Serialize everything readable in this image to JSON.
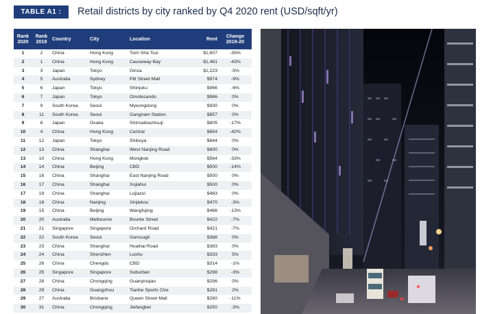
{
  "header": {
    "badge": "TABLE A1 :",
    "title": "Retail districts by city ranked by Q4 2020 rent (USD/sqft/yr)"
  },
  "table": {
    "columns": {
      "rank2020": "Rank 2020",
      "rank2019": "Rank 2019",
      "country": "Country",
      "city": "City",
      "location": "Location",
      "rent": "Rent",
      "change": "Change 2019-20"
    },
    "rows": [
      {
        "rank2020": "1",
        "rank2019": "2",
        "country": "China",
        "city": "Hong Kong",
        "location": "Tsim Sha Tsui",
        "rent": "$1,607",
        "change": "-35%"
      },
      {
        "rank2020": "2",
        "rank2019": "1",
        "country": "China",
        "city": "Hong Kong",
        "location": "Causeway Bay",
        "rent": "$1,481",
        "change": "-43%"
      },
      {
        "rank2020": "3",
        "rank2019": "3",
        "country": "Japan",
        "city": "Tokyo",
        "location": "Ginza",
        "rent": "$1,223",
        "change": "-5%"
      },
      {
        "rank2020": "4",
        "rank2019": "5",
        "country": "Australia",
        "city": "Sydney",
        "location": "Pitt Street Mall",
        "rent": "$974",
        "change": "-9%"
      },
      {
        "rank2020": "5",
        "rank2019": "6",
        "country": "Japan",
        "city": "Tokyo",
        "location": "Shinjuku",
        "rent": "$966",
        "change": "-6%"
      },
      {
        "rank2020": "6",
        "rank2019": "7",
        "country": "Japan",
        "city": "Tokyo",
        "location": "Omotesando",
        "rent": "$966",
        "change": "0%"
      },
      {
        "rank2020": "7",
        "rank2019": "9",
        "country": "South Korea",
        "city": "Seoul",
        "location": "Myeongdong",
        "rent": "$930",
        "change": "0%"
      },
      {
        "rank2020": "8",
        "rank2019": "11",
        "country": "South Korea",
        "city": "Seoul",
        "location": "Gangnam Station",
        "rent": "$857",
        "change": "0%"
      },
      {
        "rank2020": "9",
        "rank2019": "8",
        "country": "Japan",
        "city": "Osaka",
        "location": "Shinsaibashisuji",
        "rent": "$805",
        "change": "-17%"
      },
      {
        "rank2020": "10",
        "rank2019": "4",
        "country": "China",
        "city": "Hong Kong",
        "location": "Central",
        "rent": "$654",
        "change": "-42%"
      },
      {
        "rank2020": "11",
        "rank2019": "12",
        "country": "Japan",
        "city": "Tokyo",
        "location": "Shibuya",
        "rent": "$644",
        "change": "0%"
      },
      {
        "rank2020": "12",
        "rank2019": "13",
        "country": "China",
        "city": "Shanghai",
        "location": "West Nanjing Road",
        "rent": "$600",
        "change": "0%"
      },
      {
        "rank2020": "13",
        "rank2019": "10",
        "country": "China",
        "city": "Hong Kong",
        "location": "Mongkok",
        "rent": "$564",
        "change": "-33%"
      },
      {
        "rank2020": "14",
        "rank2019": "14",
        "country": "China",
        "city": "Beijing",
        "location": "CBD",
        "rent": "$500",
        "change": "-14%"
      },
      {
        "rank2020": "15",
        "rank2019": "16",
        "country": "China",
        "city": "Shanghai",
        "location": "East Nanjing Road",
        "rent": "$500",
        "change": "0%"
      },
      {
        "rank2020": "16",
        "rank2019": "17",
        "country": "China",
        "city": "Shanghai",
        "location": "Xujiahui",
        "rent": "$500",
        "change": "0%"
      },
      {
        "rank2020": "17",
        "rank2019": "19",
        "country": "China",
        "city": "Shanghai",
        "location": "Lujiazui",
        "rent": "$483",
        "change": "0%"
      },
      {
        "rank2020": "18",
        "rank2019": "18",
        "country": "China",
        "city": "Nanjing",
        "location": "Xinjiekou",
        "rent": "$470",
        "change": "-3%"
      },
      {
        "rank2020": "19",
        "rank2019": "15",
        "country": "China",
        "city": "Beijing",
        "location": "Wangfujing",
        "rent": "$466",
        "change": "-13%"
      },
      {
        "rank2020": "20",
        "rank2019": "20",
        "country": "Australia",
        "city": "Melbourne",
        "location": "Bourke Street",
        "rent": "$422",
        "change": "-7%"
      },
      {
        "rank2020": "21",
        "rank2019": "21",
        "country": "Singapore",
        "city": "Singapore",
        "location": "Orchard Road",
        "rent": "$421",
        "change": "-7%"
      },
      {
        "rank2020": "22",
        "rank2019": "22",
        "country": "South Korea",
        "city": "Seoul",
        "location": "Garosugil",
        "rent": "$388",
        "change": "0%"
      },
      {
        "rank2020": "23",
        "rank2019": "23",
        "country": "China",
        "city": "Shanghai",
        "location": "Huaihai Road",
        "rent": "$383",
        "change": "0%"
      },
      {
        "rank2020": "24",
        "rank2019": "24",
        "country": "China",
        "city": "Shenzhen",
        "location": "Luohu",
        "rent": "$333",
        "change": "5%"
      },
      {
        "rank2020": "25",
        "rank2019": "26",
        "country": "China",
        "city": "Chengdu",
        "location": "CBD",
        "rent": "$314",
        "change": "-1%"
      },
      {
        "rank2020": "26",
        "rank2019": "25",
        "country": "Singapore",
        "city": "Singapore",
        "location": "Suburban",
        "rent": "$298",
        "change": "-3%"
      },
      {
        "rank2020": "27",
        "rank2019": "28",
        "country": "China",
        "city": "Chongqing",
        "location": "Guanyinqiao",
        "rent": "$296",
        "change": "0%"
      },
      {
        "rank2020": "28",
        "rank2019": "29",
        "country": "China",
        "city": "Guangzhou",
        "location": "Tianhe Sports Ctre",
        "rent": "$281",
        "change": "2%"
      },
      {
        "rank2020": "29",
        "rank2019": "27",
        "country": "Australia",
        "city": "Brisbane",
        "location": "Queen Street Mall",
        "rent": "$260",
        "change": "-11%"
      },
      {
        "rank2020": "30",
        "rank2019": "31",
        "country": "China",
        "city": "Chongqing",
        "location": "Jiefangbei",
        "rent": "$250",
        "change": "-3%"
      }
    ]
  },
  "colors": {
    "header_bg": "#1f3d7a",
    "row_alt": "#eef0f4"
  },
  "photo": {
    "icon": "city-street-night-photo"
  }
}
